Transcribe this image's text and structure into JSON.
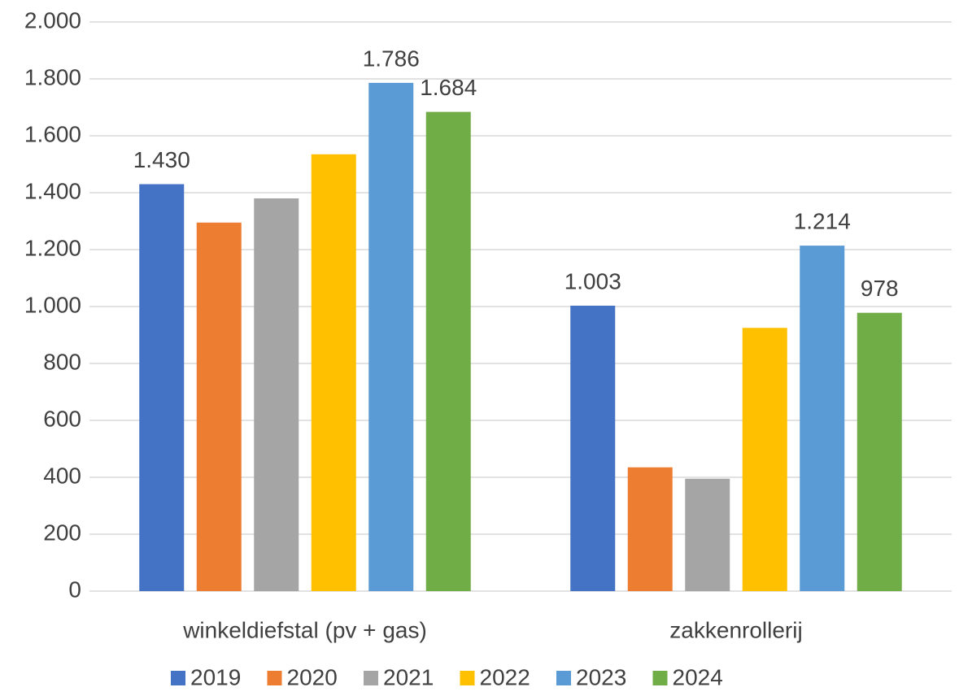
{
  "chart_data": {
    "type": "bar",
    "categories": [
      "winkeldiefstal (pv + gas)",
      "zakkenrollerij"
    ],
    "series": [
      {
        "name": "2019",
        "color": "#4472c4",
        "values": [
          1430,
          1003
        ],
        "value_labels": [
          "1.430",
          "1.003"
        ]
      },
      {
        "name": "2020",
        "color": "#ed7d31",
        "values": [
          1295,
          435
        ],
        "value_labels": [
          null,
          null
        ]
      },
      {
        "name": "2021",
        "color": "#a5a5a5",
        "values": [
          1380,
          395
        ],
        "value_labels": [
          null,
          null
        ]
      },
      {
        "name": "2022",
        "color": "#ffc000",
        "values": [
          1535,
          925
        ],
        "value_labels": [
          null,
          null
        ]
      },
      {
        "name": "2023",
        "color": "#5b9bd5",
        "values": [
          1786,
          1214
        ],
        "value_labels": [
          "1.786",
          "1.214"
        ]
      },
      {
        "name": "2024",
        "color": "#70ad47",
        "values": [
          1684,
          978
        ],
        "value_labels": [
          "1.684",
          "978"
        ]
      }
    ],
    "ylim": [
      0,
      2000
    ],
    "yticks": [
      0,
      200,
      400,
      600,
      800,
      {
        "value": 1000,
        "label": "1.000"
      },
      {
        "value": 1200,
        "label": "1.200"
      },
      {
        "value": 1400,
        "label": "1.400"
      },
      {
        "value": 1600,
        "label": "1.600"
      },
      {
        "value": 1800,
        "label": "1.800"
      },
      {
        "value": 2000,
        "label": "2.000"
      }
    ],
    "grid": true,
    "legend": "bottom"
  }
}
